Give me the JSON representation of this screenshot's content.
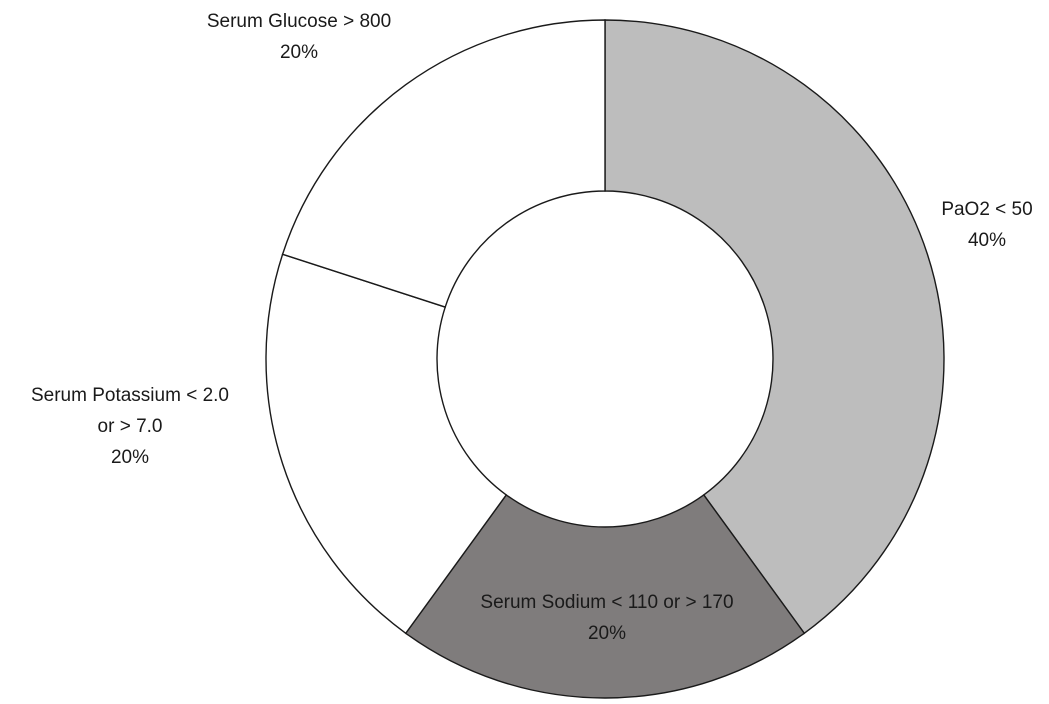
{
  "chart_data": {
    "type": "pie",
    "variant": "donut",
    "title": "",
    "slices": [
      {
        "label": [
          "PaO2 < 50"
        ],
        "value_label": "40%",
        "value": 40,
        "color": "#bdbdbd"
      },
      {
        "label": [
          "Serum Sodium < 110 or > 170"
        ],
        "value_label": "20%",
        "value": 20,
        "color": "#7f7c7c"
      },
      {
        "label": [
          "Serum Potassium < 2.0",
          "or > 7.0"
        ],
        "value_label": "20%",
        "value": 20,
        "color": "#ffffff"
      },
      {
        "label": [
          "Serum Glucose > 800"
        ],
        "value_label": "20%",
        "value": 20,
        "color": "#ffffff"
      }
    ]
  }
}
